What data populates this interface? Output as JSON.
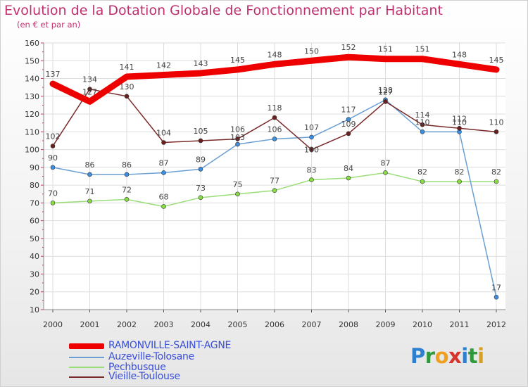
{
  "title": "Evolution de la Dotation Globale de Fonctionnement par Habitant",
  "subtitle": "(en € et par an)",
  "brand": {
    "letters": [
      "P",
      "r",
      "o",
      "x",
      "i",
      "t",
      "i"
    ],
    "colors": [
      "#2d7fd0",
      "#2e9a3c",
      "#f0a020",
      "#d8342c",
      "#2d7fd0",
      "#2e9a3c",
      "#d8a020"
    ]
  },
  "chart_data": {
    "type": "line",
    "title": "Evolution de la Dotation Globale de Fonctionnement par Habitant",
    "ylabel": "(en € et par an)",
    "xlabel": "",
    "x": [
      "2000",
      "2001",
      "2002",
      "2003",
      "2004",
      "2005",
      "2006",
      "2007",
      "2008",
      "2009",
      "2010",
      "2011",
      "2012"
    ],
    "ylim": [
      10,
      160
    ],
    "yticks": [
      "10",
      "20",
      "30",
      "40",
      "50",
      "60",
      "70",
      "80",
      "90",
      "100",
      "110",
      "120",
      "130",
      "140",
      "150",
      "160"
    ],
    "grid": true,
    "legend": "bottom-left",
    "series": [
      {
        "name": "RAMONVILLE-SAINT-AGNE",
        "color": "#ee0000",
        "values": [
          137,
          127,
          141,
          142,
          143,
          145,
          148,
          150,
          152,
          151,
          151,
          148,
          145
        ],
        "labels": [
          "137",
          "127",
          "141",
          "142",
          "143",
          "145",
          "148",
          "150",
          "152",
          "151",
          "151",
          "148",
          "145"
        ]
      },
      {
        "name": "Auzeville-Tolosane",
        "color": "#6a9fd4",
        "values": [
          90,
          86,
          86,
          87,
          89,
          103,
          106,
          107,
          117,
          128,
          110,
          110,
          17
        ],
        "labels": [
          "90",
          "86",
          "86",
          "87",
          "89",
          "103",
          "106",
          "107",
          "117",
          "128",
          "110",
          "110",
          "17"
        ]
      },
      {
        "name": "Pechbusque",
        "color": "#99dd77",
        "values": [
          70,
          71,
          72,
          68,
          73,
          75,
          77,
          83,
          84,
          87,
          82,
          82,
          82
        ],
        "labels": [
          "70",
          "71",
          "72",
          "68",
          "73",
          "75",
          "77",
          "83",
          "84",
          "87",
          "82",
          "82",
          "82"
        ]
      },
      {
        "name": "Vieille-Toulouse",
        "color": "#7a2a2a",
        "values": [
          102,
          134,
          130,
          104,
          105,
          106,
          118,
          100,
          109,
          127,
          114,
          112,
          110
        ],
        "labels": [
          "102",
          "134",
          "130",
          "104",
          "105",
          "106",
          "118",
          "100",
          "109",
          "127",
          "114",
          "112",
          "110"
        ]
      }
    ]
  }
}
